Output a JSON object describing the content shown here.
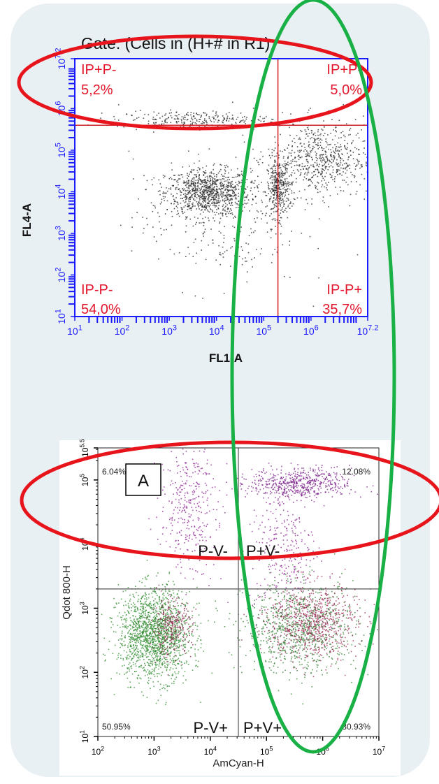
{
  "chart_data": [
    {
      "type": "scatter",
      "title": "Gate: (Cells in (H+# in R1)",
      "xlabel": "FL1-A",
      "ylabel": "FL4-A",
      "x_scale": "log",
      "y_scale": "log",
      "xlim": [
        1,
        7.2
      ],
      "ylim": [
        1,
        7.2
      ],
      "x_ticks": [
        {
          "base": "10",
          "exp": "1"
        },
        {
          "base": "10",
          "exp": "2"
        },
        {
          "base": "10",
          "exp": "3"
        },
        {
          "base": "10",
          "exp": "4"
        },
        {
          "base": "10",
          "exp": "5"
        },
        {
          "base": "10",
          "exp": "6"
        },
        {
          "base": "10",
          "exp": "7.2"
        }
      ],
      "y_ticks": [
        {
          "base": "10",
          "exp": "1"
        },
        {
          "base": "10",
          "exp": "2"
        },
        {
          "base": "10",
          "exp": "3"
        },
        {
          "base": "10",
          "exp": "4"
        },
        {
          "base": "10",
          "exp": "5"
        },
        {
          "base": "10",
          "exp": "6"
        },
        {
          "base": "10",
          "exp": "7.2"
        }
      ],
      "gate_x": 5.3,
      "gate_y": 5.6,
      "quadrants": [
        {
          "id": "ul",
          "label": "IP+P-",
          "value": "5,2%"
        },
        {
          "id": "ur",
          "label": "IP+P-",
          "value": "5,0%"
        },
        {
          "id": "ll",
          "label": "IP-P-",
          "value": "54,0%"
        },
        {
          "id": "lr",
          "label": "IP-P+",
          "value": "35,7%"
        }
      ],
      "clusters": [
        {
          "x": 3.8,
          "y": 4.0,
          "sx": 0.45,
          "sy": 0.28,
          "n": 900
        },
        {
          "x": 5.3,
          "y": 4.1,
          "sx": 0.12,
          "sy": 0.35,
          "n": 350
        },
        {
          "x": 6.2,
          "y": 4.8,
          "sx": 0.55,
          "sy": 0.45,
          "n": 650
        },
        {
          "x": 3.5,
          "y": 5.75,
          "sx": 0.8,
          "sy": 0.1,
          "n": 250
        },
        {
          "x": 4.0,
          "y": 3.3,
          "sx": 0.9,
          "sy": 0.8,
          "n": 250
        }
      ],
      "point_color": "#222222",
      "axis_color": "#1a1aff",
      "gate_color": "#d0202a"
    },
    {
      "type": "scatter",
      "panel_label": "A",
      "xlabel": "AmCyan-H",
      "ylabel": "Qdot 800-H",
      "x_scale": "log",
      "y_scale": "log",
      "xlim": [
        2,
        7
      ],
      "ylim": [
        1,
        5.5
      ],
      "x_ticks": [
        {
          "base": "10",
          "exp": "2"
        },
        {
          "base": "10",
          "exp": "3"
        },
        {
          "base": "10",
          "exp": "4"
        },
        {
          "base": "10",
          "exp": "5"
        },
        {
          "base": "10",
          "exp": "6"
        },
        {
          "base": "10",
          "exp": "7"
        }
      ],
      "y_ticks": [
        {
          "base": "10",
          "exp": "1"
        },
        {
          "base": "10",
          "exp": "2"
        },
        {
          "base": "10",
          "exp": "3"
        },
        {
          "base": "10",
          "exp": "4"
        },
        {
          "base": "10",
          "exp": "5"
        },
        {
          "base": "10",
          "exp": "5.5"
        }
      ],
      "gate_x": 4.5,
      "gate_y": 3.3,
      "quadrants": [
        {
          "id": "ul",
          "label": "P-V-",
          "value": "6.04%"
        },
        {
          "id": "ur",
          "label": "P+V-",
          "value": "12.08%"
        },
        {
          "id": "ll",
          "label": "P-V+",
          "value": "50.95%"
        },
        {
          "id": "lr",
          "label": "P+V+",
          "value": "30.93%"
        }
      ],
      "clusters": [
        {
          "x": 3.0,
          "y": 2.6,
          "sx": 0.32,
          "sy": 0.35,
          "n": 1600,
          "color": "#2e8b2e"
        },
        {
          "x": 3.3,
          "y": 2.7,
          "sx": 0.18,
          "sy": 0.22,
          "n": 300,
          "color": "#8b2a4a"
        },
        {
          "x": 5.6,
          "y": 2.7,
          "sx": 0.5,
          "sy": 0.35,
          "n": 900,
          "color": "#2e7a2e"
        },
        {
          "x": 5.8,
          "y": 2.8,
          "sx": 0.4,
          "sy": 0.3,
          "n": 700,
          "color": "#9a2650"
        },
        {
          "x": 3.6,
          "y": 4.6,
          "sx": 0.25,
          "sy": 0.5,
          "n": 350,
          "color": "#8a2090"
        },
        {
          "x": 5.6,
          "y": 4.95,
          "sx": 0.45,
          "sy": 0.12,
          "n": 550,
          "color": "#7a1f8a"
        },
        {
          "x": 5.3,
          "y": 4.0,
          "sx": 0.3,
          "sy": 0.6,
          "n": 300,
          "color": "#8a2090"
        }
      ],
      "axis_color": "#000000",
      "gate_color": "#555555"
    }
  ],
  "annotations": {
    "red_ellipse_color": "#e8141c",
    "green_ellipse_color": "#19b045"
  }
}
